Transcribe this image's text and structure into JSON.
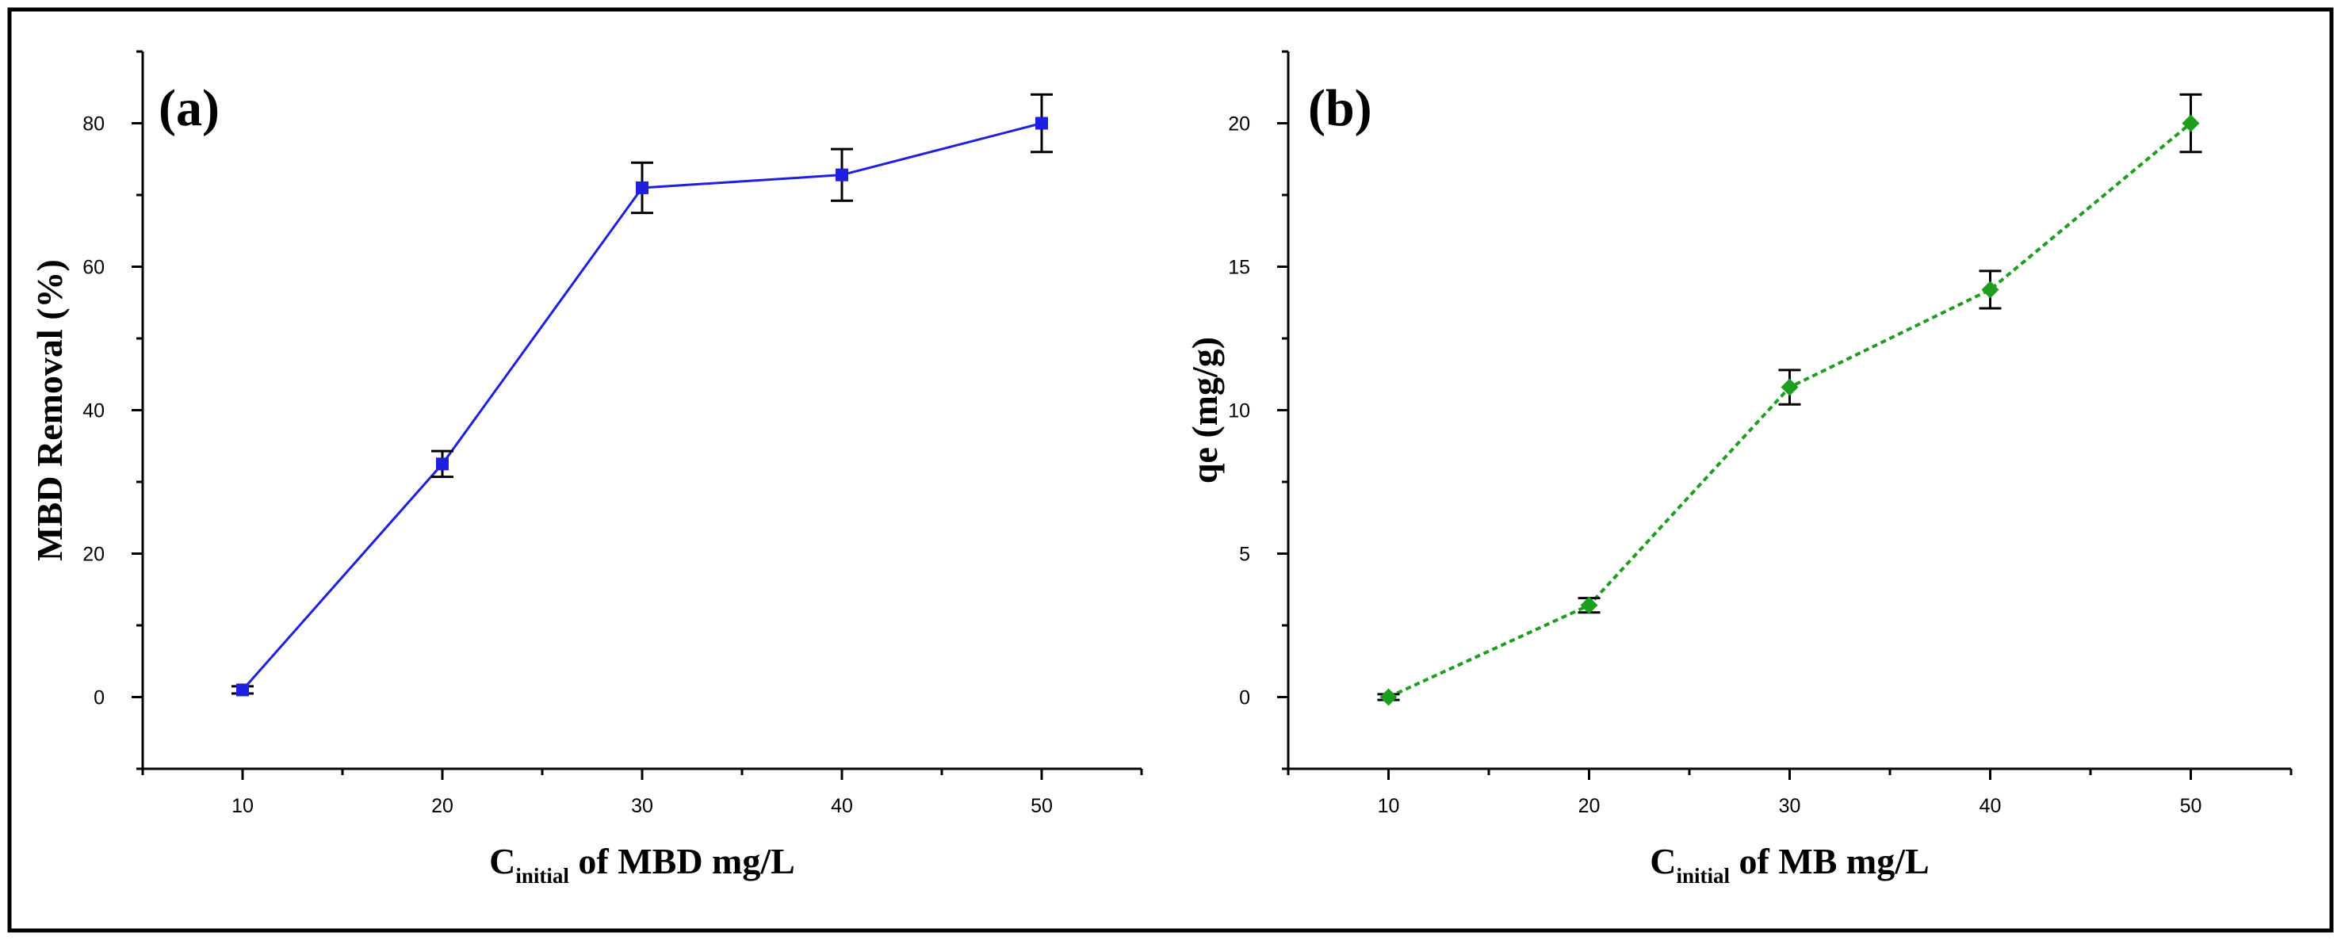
{
  "chart_data": [
    {
      "type": "line",
      "panel_label": "(a)",
      "title": "",
      "xlabel": {
        "main": "C",
        "sub": "initial",
        "rest": " of MBD mg/L"
      },
      "ylabel": "MBD Removal (%)",
      "xlim": [
        5,
        55
      ],
      "ylim": [
        -10,
        90
      ],
      "xticks": [
        10,
        20,
        30,
        40,
        50
      ],
      "yticks": [
        0,
        20,
        40,
        60,
        80
      ],
      "x": [
        10,
        20,
        30,
        40,
        50
      ],
      "series": [
        {
          "name": "MBD Removal",
          "values": [
            1,
            32.5,
            71,
            72.8,
            80
          ],
          "errors": [
            0.5,
            1.8,
            3.5,
            3.6,
            4
          ],
          "color": "#1f1fe0",
          "line_style": "solid",
          "marker": "square"
        }
      ]
    },
    {
      "type": "line",
      "panel_label": "(b)",
      "title": "",
      "xlabel": {
        "main": "C",
        "sub": "initial",
        "rest": " of MB mg/L"
      },
      "ylabel": "qe (mg/g)",
      "xlim": [
        5,
        55
      ],
      "ylim": [
        -2.5,
        22.5
      ],
      "xticks": [
        10,
        20,
        30,
        40,
        50
      ],
      "yticks": [
        0,
        5,
        10,
        15,
        20
      ],
      "x": [
        10,
        20,
        30,
        40,
        50
      ],
      "series": [
        {
          "name": "qe",
          "values": [
            0,
            3.2,
            10.8,
            14.2,
            20
          ],
          "errors": [
            0.1,
            0.25,
            0.6,
            0.65,
            1
          ],
          "color": "#1e9e1e",
          "line_style": "dotted",
          "marker": "diamond"
        }
      ]
    }
  ]
}
